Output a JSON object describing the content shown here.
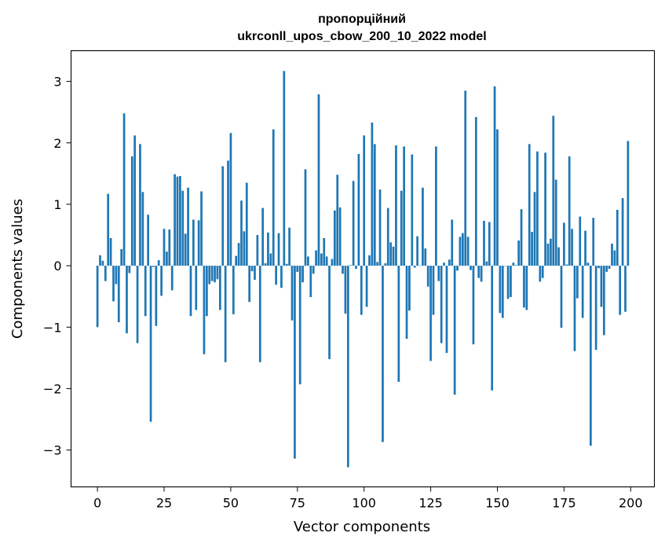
{
  "chart_data": {
    "type": "bar",
    "title": "пропорційний",
    "subtitle": "ukrconll_upos_cbow_200_10_2022 model",
    "xlabel": "Vector components",
    "ylabel": "Components values",
    "xlim": [
      -9.9,
      208.9
    ],
    "ylim": [
      -3.6,
      3.5
    ],
    "xticks": [
      0,
      25,
      50,
      75,
      100,
      125,
      150,
      175,
      200
    ],
    "yticks": [
      3,
      2,
      1,
      0,
      -1,
      -2,
      -3
    ],
    "ytick_labels": [
      "3",
      "2",
      "1",
      "0",
      "−1",
      "−2",
      "−3"
    ],
    "grid": false,
    "bar_color": "#1f77b4",
    "x": [
      0,
      1,
      2,
      3,
      4,
      5,
      6,
      7,
      8,
      9,
      10,
      11,
      12,
      13,
      14,
      15,
      16,
      17,
      18,
      19,
      20,
      21,
      22,
      23,
      24,
      25,
      26,
      27,
      28,
      29,
      30,
      31,
      32,
      33,
      34,
      35,
      36,
      37,
      38,
      39,
      40,
      41,
      42,
      43,
      44,
      45,
      46,
      47,
      48,
      49,
      50,
      51,
      52,
      53,
      54,
      55,
      56,
      57,
      58,
      59,
      60,
      61,
      62,
      63,
      64,
      65,
      66,
      67,
      68,
      69,
      70,
      71,
      72,
      73,
      74,
      75,
      76,
      77,
      78,
      79,
      80,
      81,
      82,
      83,
      84,
      85,
      86,
      87,
      88,
      89,
      90,
      91,
      92,
      93,
      94,
      95,
      96,
      97,
      98,
      99,
      100,
      101,
      102,
      103,
      104,
      105,
      106,
      107,
      108,
      109,
      110,
      111,
      112,
      113,
      114,
      115,
      116,
      117,
      118,
      119,
      120,
      121,
      122,
      123,
      124,
      125,
      126,
      127,
      128,
      129,
      130,
      131,
      132,
      133,
      134,
      135,
      136,
      137,
      138,
      139,
      140,
      141,
      142,
      143,
      144,
      145,
      146,
      147,
      148,
      149,
      150,
      151,
      152,
      153,
      154,
      155,
      156,
      157,
      158,
      159,
      160,
      161,
      162,
      163,
      164,
      165,
      166,
      167,
      168,
      169,
      170,
      171,
      172,
      173,
      174,
      175,
      176,
      177,
      178,
      179,
      180,
      181,
      182,
      183,
      184,
      185,
      186,
      187,
      188,
      189,
      190,
      191,
      192,
      193,
      194,
      195,
      196,
      197,
      198,
      199
    ],
    "values": [
      -1.0,
      0.17,
      0.08,
      -0.25,
      1.17,
      0.45,
      -0.58,
      -0.3,
      -0.92,
      0.27,
      2.48,
      -1.1,
      -0.12,
      1.78,
      2.12,
      -1.26,
      1.98,
      1.2,
      -0.82,
      0.83,
      -2.54,
      -0.02,
      -0.98,
      0.09,
      -0.49,
      0.6,
      0.23,
      0.59,
      -0.4,
      1.49,
      1.45,
      1.46,
      1.22,
      0.52,
      1.27,
      -0.82,
      0.75,
      -0.72,
      0.74,
      1.21,
      -1.44,
      -0.82,
      -0.3,
      -0.25,
      -0.27,
      -0.22,
      -0.72,
      1.62,
      -1.57,
      1.71,
      2.16,
      -0.79,
      0.16,
      0.37,
      1.06,
      0.56,
      1.35,
      -0.59,
      -0.09,
      -0.23,
      0.5,
      -1.57,
      0.94,
      0.04,
      0.54,
      0.2,
      2.22,
      -0.31,
      0.53,
      -0.36,
      3.17,
      0.03,
      0.62,
      -0.89,
      -3.14,
      -0.1,
      -1.93,
      -0.27,
      1.57,
      0.15,
      -0.51,
      -0.13,
      0.25,
      2.79,
      0.2,
      0.45,
      0.15,
      -1.52,
      0.11,
      0.9,
      1.48,
      0.95,
      -0.13,
      -0.78,
      -3.28,
      0.01,
      1.38,
      -0.05,
      1.82,
      -0.8,
      2.12,
      -0.67,
      0.17,
      2.33,
      1.98,
      0.06,
      1.24,
      -2.87,
      0.04,
      0.94,
      0.38,
      0.31,
      1.96,
      -1.89,
      1.22,
      1.94,
      -1.19,
      -0.73,
      1.81,
      -0.03,
      0.48,
      0.0,
      1.27,
      0.28,
      -0.34,
      -1.55,
      -0.8,
      1.94,
      -0.25,
      -1.26,
      0.05,
      -1.42,
      0.1,
      0.75,
      -2.1,
      -0.08,
      0.47,
      0.53,
      2.85,
      0.47,
      -0.07,
      -1.28,
      2.42,
      -0.2,
      -0.26,
      0.73,
      0.07,
      0.71,
      -2.03,
      2.92,
      2.22,
      -0.77,
      -0.85,
      0.0,
      -0.54,
      -0.51,
      0.05,
      0.01,
      0.41,
      0.92,
      -0.68,
      -0.72,
      1.98,
      0.55,
      1.2,
      1.86,
      -0.26,
      -0.2,
      1.84,
      0.36,
      0.44,
      2.44,
      1.4,
      0.3,
      -1.01,
      0.7,
      0.02,
      1.78,
      0.6,
      -1.39,
      -0.53,
      0.8,
      -0.85,
      0.57,
      0.05,
      -2.93,
      0.78,
      -1.37,
      -0.04,
      -0.67,
      -1.13,
      -0.1,
      -0.05,
      0.36,
      0.25,
      0.91,
      -0.8,
      1.1,
      -0.75,
      2.03
    ]
  }
}
